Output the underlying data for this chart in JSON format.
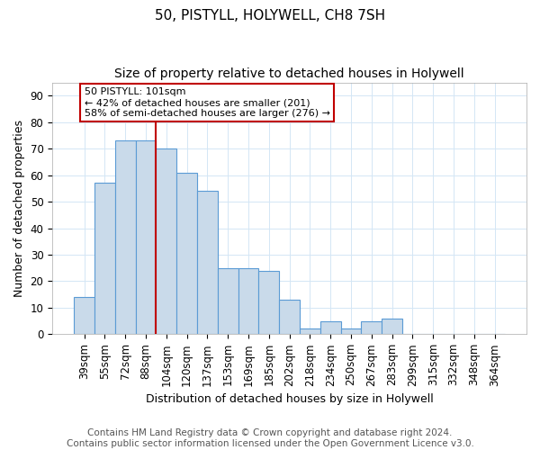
{
  "title": "50, PISTYLL, HOLYWELL, CH8 7SH",
  "subtitle": "Size of property relative to detached houses in Holywell",
  "xlabel": "Distribution of detached houses by size in Holywell",
  "ylabel": "Number of detached properties",
  "categories": [
    "39sqm",
    "55sqm",
    "72sqm",
    "88sqm",
    "104sqm",
    "120sqm",
    "137sqm",
    "153sqm",
    "169sqm",
    "185sqm",
    "202sqm",
    "218sqm",
    "234sqm",
    "250sqm",
    "267sqm",
    "283sqm",
    "299sqm",
    "315sqm",
    "332sqm",
    "348sqm",
    "364sqm"
  ],
  "values": [
    14,
    57,
    73,
    73,
    70,
    61,
    54,
    25,
    25,
    24,
    13,
    2,
    5,
    2,
    5,
    6,
    0,
    0,
    0,
    0,
    0
  ],
  "bar_color": "#c9daea",
  "bar_edge_color": "#5b9bd5",
  "bar_width": 1.0,
  "red_line_x": 4.0,
  "marker_color": "#c00000",
  "annotation_text": "50 PISTYLL: 101sqm\n← 42% of detached houses are smaller (201)\n58% of semi-detached houses are larger (276) →",
  "annotation_box_color": "#ffffff",
  "annotation_box_edge": "#c00000",
  "ylim": [
    0,
    95
  ],
  "yticks": [
    0,
    10,
    20,
    30,
    40,
    50,
    60,
    70,
    80,
    90
  ],
  "footnote": "Contains HM Land Registry data © Crown copyright and database right 2024.\nContains public sector information licensed under the Open Government Licence v3.0.",
  "grid_color": "#d4e6f5",
  "background_color": "#ffffff",
  "title_fontsize": 11,
  "subtitle_fontsize": 10,
  "axis_label_fontsize": 9,
  "tick_fontsize": 8.5,
  "footnote_fontsize": 7.5
}
